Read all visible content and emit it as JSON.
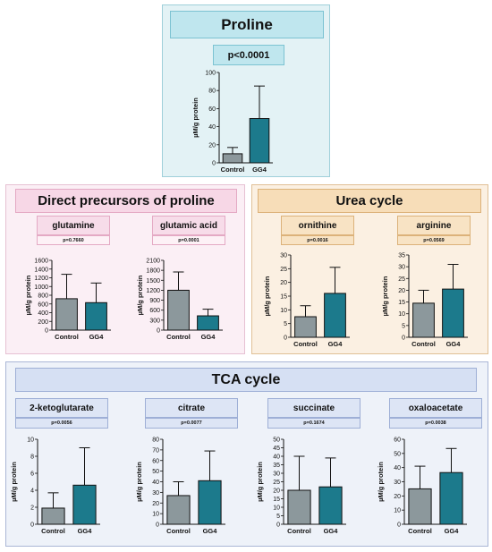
{
  "colors": {
    "control": "#8c989c",
    "gg4": "#1c7a8c"
  },
  "panels": {
    "proline": {
      "title": "Proline"
    },
    "precursors": {
      "title": "Direct precursors of proline"
    },
    "urea": {
      "title": "Urea cycle"
    },
    "tca": {
      "title": "TCA cycle"
    }
  },
  "chart_data": [
    {
      "id": "proline",
      "type": "bar",
      "title": "",
      "pvalue": "p<0.0001",
      "ylabel": "µM/g protein",
      "categories": [
        "Control",
        "GG4"
      ],
      "values": [
        10,
        49
      ],
      "errors": [
        7,
        36
      ],
      "ylim": [
        0,
        100
      ],
      "yticks": [
        0,
        20,
        40,
        60,
        80,
        100
      ]
    },
    {
      "id": "glutamine",
      "type": "bar",
      "title": "glutamine",
      "pvalue": "p=0.7660",
      "ylabel": "µM/g protein",
      "categories": [
        "Control",
        "GG4"
      ],
      "values": [
        720,
        630
      ],
      "errors": [
        560,
        450
      ],
      "ylim": [
        0,
        1600
      ],
      "yticks": [
        0,
        200,
        400,
        600,
        800,
        1000,
        1200,
        1400,
        1600
      ]
    },
    {
      "id": "glutamic",
      "type": "bar",
      "title": "glutamic acid",
      "pvalue": "p=0.0001",
      "ylabel": "µM/g protein",
      "categories": [
        "Control",
        "GG4"
      ],
      "values": [
        1200,
        430
      ],
      "errors": [
        550,
        200
      ],
      "ylim": [
        0,
        2100
      ],
      "yticks": [
        0,
        300,
        600,
        900,
        1200,
        1500,
        1800,
        2100
      ]
    },
    {
      "id": "ornithine",
      "type": "bar",
      "title": "ornithine",
      "pvalue": "p=0.0016",
      "ylabel": "µM/g protein",
      "categories": [
        "Control",
        "GG4"
      ],
      "values": [
        7.5,
        16
      ],
      "errors": [
        4,
        9.5
      ],
      "ylim": [
        0,
        30
      ],
      "yticks": [
        0,
        5,
        10,
        15,
        20,
        25,
        30
      ]
    },
    {
      "id": "arginine",
      "type": "bar",
      "title": "arginine",
      "pvalue": "p=0.0569",
      "ylabel": "µM/g protein",
      "categories": [
        "Control",
        "GG4"
      ],
      "values": [
        14.5,
        20.5
      ],
      "errors": [
        5.5,
        10.5
      ],
      "ylim": [
        0,
        35
      ],
      "yticks": [
        0,
        5,
        10,
        15,
        20,
        25,
        30,
        35
      ]
    },
    {
      "id": "ketoglutarate",
      "type": "bar",
      "title": "2-ketoglutarate",
      "pvalue": "p=0.0056",
      "ylabel": "µM/g protein",
      "categories": [
        "Control",
        "GG4"
      ],
      "values": [
        1.9,
        4.6
      ],
      "errors": [
        1.8,
        4.4
      ],
      "ylim": [
        0,
        10
      ],
      "yticks": [
        0,
        2,
        4,
        6,
        8,
        10
      ]
    },
    {
      "id": "citrate",
      "type": "bar",
      "title": "citrate",
      "pvalue": "p=0.0077",
      "ylabel": "µM/g protein",
      "categories": [
        "Control",
        "GG4"
      ],
      "values": [
        27,
        41
      ],
      "errors": [
        13,
        28
      ],
      "ylim": [
        0,
        80
      ],
      "yticks": [
        0,
        10,
        20,
        30,
        40,
        50,
        60,
        70,
        80
      ]
    },
    {
      "id": "succinate",
      "type": "bar",
      "title": "succinate",
      "pvalue": "p=0.1674",
      "ylabel": "µM/g protein",
      "categories": [
        "Control",
        "GG4"
      ],
      "values": [
        20,
        22
      ],
      "errors": [
        20,
        17
      ],
      "ylim": [
        0,
        50
      ],
      "yticks": [
        0,
        5,
        10,
        15,
        20,
        25,
        30,
        35,
        40,
        45,
        50
      ]
    },
    {
      "id": "oxaloacetate",
      "type": "bar",
      "title": "oxaloacetate",
      "pvalue": "p=0.0038",
      "ylabel": "µM/g protein",
      "categories": [
        "Control",
        "GG4"
      ],
      "values": [
        25,
        36.5
      ],
      "errors": [
        16,
        17
      ],
      "ylim": [
        0,
        60
      ],
      "yticks": [
        0,
        10,
        20,
        30,
        40,
        50,
        60
      ]
    }
  ]
}
